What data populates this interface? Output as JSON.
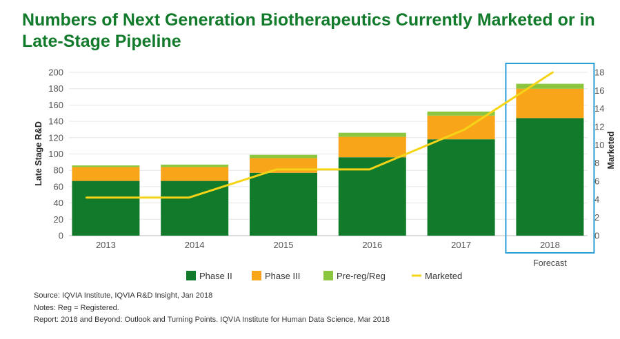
{
  "title": "Numbers of Next Generation Biotherapeutics Currently Marketed or in Late-Stage Pipeline",
  "chart_data": {
    "type": "bar",
    "stacked": true,
    "categories": [
      "2013",
      "2014",
      "2015",
      "2016",
      "2017",
      "2018"
    ],
    "series": [
      {
        "name": "Phase II",
        "values": [
          67,
          67,
          77,
          96,
          118,
          144
        ],
        "color": "#127a2b"
      },
      {
        "name": "Phase III",
        "values": [
          17,
          17,
          18,
          25,
          29,
          36
        ],
        "color": "#f9a51a"
      },
      {
        "name": "Pre-reg/Reg",
        "values": [
          2,
          3,
          4,
          5,
          5,
          6
        ],
        "color": "#8cc63f"
      }
    ],
    "line_series": {
      "name": "Marketed",
      "axis": "right",
      "values": [
        4.2,
        4.2,
        7.3,
        7.3,
        11.7,
        18.0
      ],
      "color": "#f5d418"
    },
    "ylabel": "Late Stage R&D",
    "ylabel_right": "Marketed",
    "ylim": [
      0,
      200
    ],
    "yticks": [
      "0",
      "20",
      "40",
      "60",
      "80",
      "100",
      "120",
      "140",
      "160",
      "180",
      "200"
    ],
    "ylim_right": [
      0,
      18
    ],
    "yticks_right": [
      "0",
      "2",
      "4",
      "6",
      "8",
      "10",
      "12",
      "14",
      "16",
      "18"
    ],
    "highlight": {
      "category": "2018",
      "label": "Forecast",
      "color": "#2a9fd6"
    },
    "legend_position": "bottom",
    "grid": true
  },
  "notes": [
    "Source: IQVIA Institute, IQVIA R&D Insight, Jan 2018",
    "Notes: Reg = Registered.",
    "Report: 2018 and Beyond: Outlook and Turning Points. IQVIA Institute for Human Data Science, Mar 2018"
  ]
}
